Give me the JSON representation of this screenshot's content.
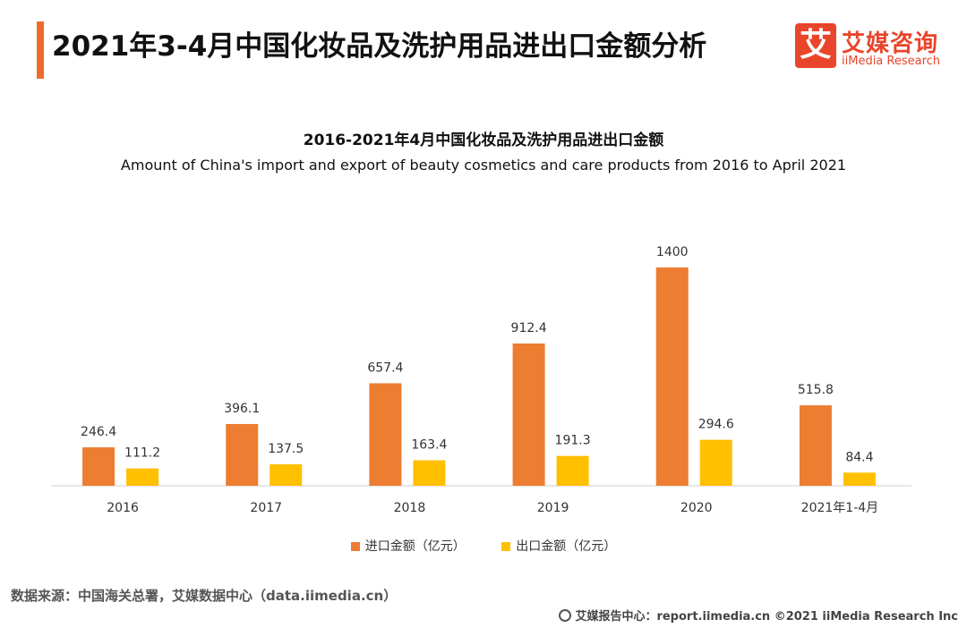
{
  "header": {
    "title": "2021年3-4月中国化妆品及洗护用品进出口金额分析",
    "brand_logo_char": "艾",
    "brand_cn": "艾媒咨询",
    "brand_en": "iiMedia Research",
    "accent_color": "#ef6b2d"
  },
  "chart_data": {
    "type": "bar",
    "title": "2016-2021年4月中国化妆品及洗护用品进出口金额",
    "subtitle": "Amount of China's import and export of beauty cosmetics and care products from 2016 to April 2021",
    "categories": [
      "2016",
      "2017",
      "2018",
      "2019",
      "2020",
      "2021年1-4月"
    ],
    "series": [
      {
        "name": "进口金额（亿元）",
        "color": "#ed7d31",
        "values": [
          246.4,
          396.1,
          657.4,
          912.4,
          1400,
          515.8
        ],
        "labels": [
          "246.4",
          "396.1",
          "657.4",
          "912.4",
          "1400",
          "515.8"
        ]
      },
      {
        "name": "出口金额（亿元）",
        "color": "#ffc000",
        "values": [
          111.2,
          137.5,
          163.4,
          191.3,
          294.6,
          84.4
        ],
        "labels": [
          "111.2",
          "137.5",
          "163.4",
          "191.3",
          "294.6",
          "84.4"
        ]
      }
    ],
    "ylim": [
      0,
      1400
    ],
    "grid": false,
    "legend_position": "bottom"
  },
  "source": "数据来源：中国海关总署，艾媒数据中心（data.iimedia.cn）",
  "footer": "艾媒报告中心：report.iimedia.cn  ©2021  iiMedia Research  Inc"
}
